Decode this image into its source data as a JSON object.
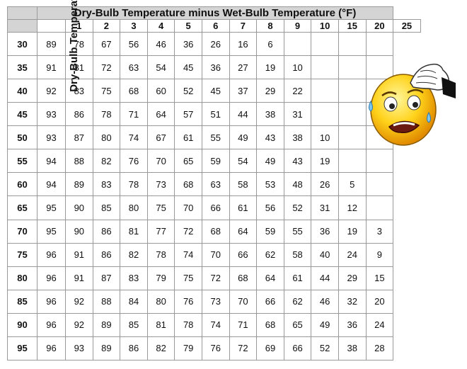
{
  "table": {
    "title": "Dry-Bulb Temperature minus Wet-Bulb Temperature (°F)",
    "row_axis_label": "Dry-Bulb Temperature (°F)",
    "columns": [
      "1",
      "2",
      "3",
      "4",
      "5",
      "6",
      "7",
      "8",
      "9",
      "10",
      "15",
      "20",
      "25"
    ],
    "rows": [
      {
        "label": "30",
        "cells": [
          "89",
          "78",
          "67",
          "56",
          "46",
          "36",
          "26",
          "16",
          "6",
          "",
          "",
          "",
          ""
        ]
      },
      {
        "label": "35",
        "cells": [
          "91",
          "81",
          "72",
          "63",
          "54",
          "45",
          "36",
          "27",
          "19",
          "10",
          "",
          "",
          ""
        ]
      },
      {
        "label": "40",
        "cells": [
          "92",
          "83",
          "75",
          "68",
          "60",
          "52",
          "45",
          "37",
          "29",
          "22",
          "",
          "",
          ""
        ]
      },
      {
        "label": "45",
        "cells": [
          "93",
          "86",
          "78",
          "71",
          "64",
          "57",
          "51",
          "44",
          "38",
          "31",
          "",
          "",
          ""
        ]
      },
      {
        "label": "50",
        "cells": [
          "93",
          "87",
          "80",
          "74",
          "67",
          "61",
          "55",
          "49",
          "43",
          "38",
          "10",
          "",
          ""
        ]
      },
      {
        "label": "55",
        "cells": [
          "94",
          "88",
          "82",
          "76",
          "70",
          "65",
          "59",
          "54",
          "49",
          "43",
          "19",
          "",
          ""
        ]
      },
      {
        "label": "60",
        "cells": [
          "94",
          "89",
          "83",
          "78",
          "73",
          "68",
          "63",
          "58",
          "53",
          "48",
          "26",
          "5",
          ""
        ]
      },
      {
        "label": "65",
        "cells": [
          "95",
          "90",
          "85",
          "80",
          "75",
          "70",
          "66",
          "61",
          "56",
          "52",
          "31",
          "12",
          ""
        ]
      },
      {
        "label": "70",
        "cells": [
          "95",
          "90",
          "86",
          "81",
          "77",
          "72",
          "68",
          "64",
          "59",
          "55",
          "36",
          "19",
          "3"
        ]
      },
      {
        "label": "75",
        "cells": [
          "96",
          "91",
          "86",
          "82",
          "78",
          "74",
          "70",
          "66",
          "62",
          "58",
          "40",
          "24",
          "9"
        ]
      },
      {
        "label": "80",
        "cells": [
          "96",
          "91",
          "87",
          "83",
          "79",
          "75",
          "72",
          "68",
          "64",
          "61",
          "44",
          "29",
          "15"
        ]
      },
      {
        "label": "85",
        "cells": [
          "96",
          "92",
          "88",
          "84",
          "80",
          "76",
          "73",
          "70",
          "66",
          "62",
          "46",
          "32",
          "20"
        ]
      },
      {
        "label": "90",
        "cells": [
          "96",
          "92",
          "89",
          "85",
          "81",
          "78",
          "74",
          "71",
          "68",
          "65",
          "49",
          "36",
          "24"
        ]
      },
      {
        "label": "95",
        "cells": [
          "96",
          "93",
          "89",
          "86",
          "82",
          "79",
          "76",
          "72",
          "69",
          "66",
          "52",
          "38",
          "28"
        ]
      }
    ]
  },
  "decoration": {
    "icon": "sweating-face-icon",
    "face_color": "#ffd21a"
  }
}
